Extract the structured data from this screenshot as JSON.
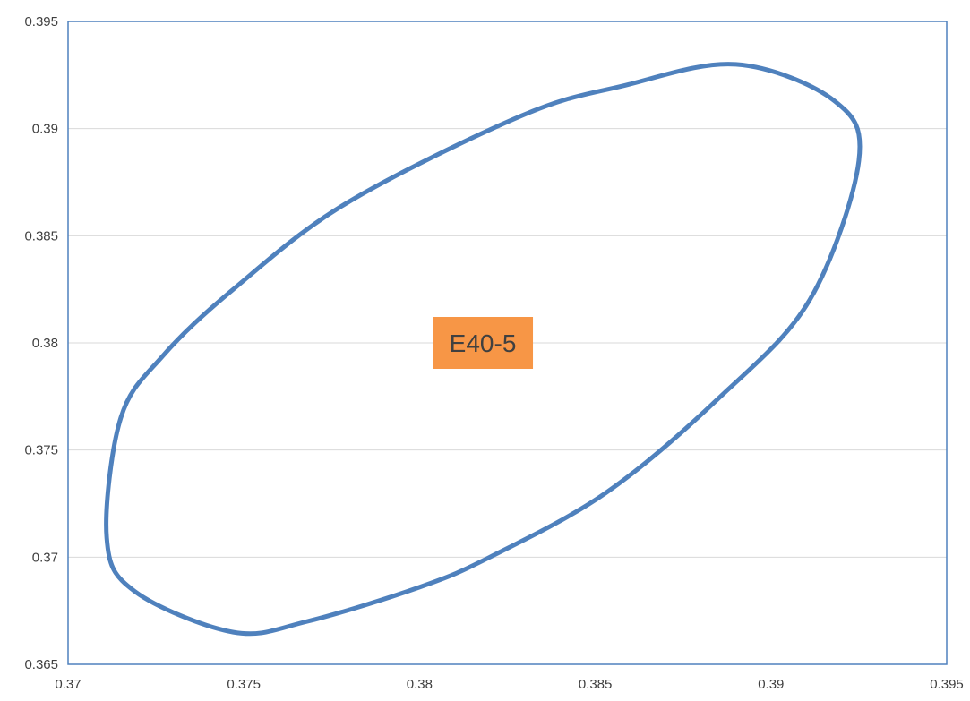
{
  "chart_data": {
    "type": "scatter",
    "title": "",
    "xlabel": "",
    "ylabel": "",
    "xlim": [
      0.37,
      0.395
    ],
    "ylim": [
      0.365,
      0.395
    ],
    "x_ticks": [
      "0.37",
      "0.375",
      "0.38",
      "0.385",
      "0.39",
      "0.395"
    ],
    "y_ticks": [
      "0.365",
      "0.37",
      "0.375",
      "0.38",
      "0.385",
      "0.39",
      "0.395"
    ],
    "grid": "horizontal",
    "legend": "none",
    "series": [
      {
        "points": [
          [
            0.3711,
            0.3709
          ],
          [
            0.3719,
            0.3684
          ],
          [
            0.3747,
            0.3665
          ],
          [
            0.3768,
            0.367
          ],
          [
            0.38,
            0.3686
          ],
          [
            0.382,
            0.37
          ],
          [
            0.3853,
            0.373
          ],
          [
            0.3885,
            0.3774
          ],
          [
            0.3911,
            0.382
          ],
          [
            0.3925,
            0.3885
          ],
          [
            0.3918,
            0.3913
          ],
          [
            0.389,
            0.393
          ],
          [
            0.3858,
            0.392
          ],
          [
            0.3829,
            0.3906
          ],
          [
            0.3779,
            0.3865
          ],
          [
            0.3747,
            0.3825
          ],
          [
            0.3727,
            0.3794
          ],
          [
            0.3715,
            0.3765
          ],
          [
            0.3711,
            0.3709
          ]
        ],
        "line_color": "#4f81bd"
      }
    ],
    "annotations": [
      {
        "text": "E40-5",
        "x": 0.3818,
        "y": 0.38,
        "background": "#f79646"
      }
    ],
    "colors": {
      "axis": "#4f81bd",
      "grid": "#d9d9d9",
      "tick_label": "#404040"
    }
  }
}
